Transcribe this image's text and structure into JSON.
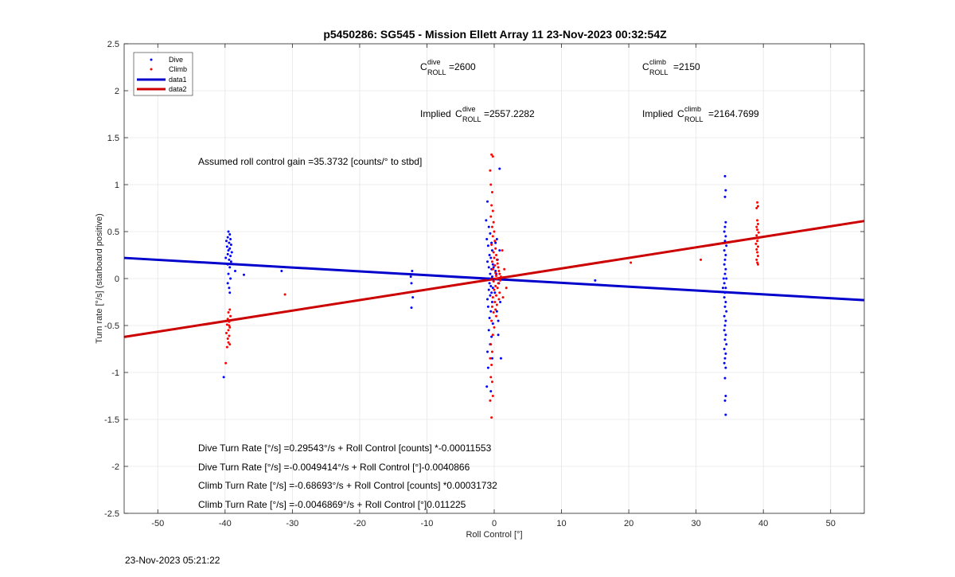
{
  "chart_data": {
    "type": "scatter",
    "title": "p5450286: SG545 - Mission Ellett Array 11 23-Nov-2023 00:32:54Z",
    "xlabel": "Roll Control [°]",
    "ylabel": "Turn rate [°/s] (starboard positive)",
    "xlim": [
      -55,
      55
    ],
    "ylim": [
      -2.5,
      2.5
    ],
    "xticks": [
      -50,
      -40,
      -30,
      -20,
      -10,
      0,
      10,
      20,
      30,
      40,
      50
    ],
    "yticks": [
      -2.5,
      -2,
      -1.5,
      -1,
      -0.5,
      0,
      0.5,
      1,
      1.5,
      2,
      2.5
    ],
    "grid": true,
    "legend_position": "top-left",
    "series": [
      {
        "name": "Dive",
        "kind": "scatter",
        "color": "#0000ff",
        "points": [
          [
            -39.5,
            0.5
          ],
          [
            -39.3,
            0.47
          ],
          [
            -39.6,
            0.44
          ],
          [
            -39.2,
            0.42
          ],
          [
            -39.8,
            0.4
          ],
          [
            -39.4,
            0.38
          ],
          [
            -39.1,
            0.36
          ],
          [
            -39.7,
            0.34
          ],
          [
            -39.3,
            0.32
          ],
          [
            -39.5,
            0.3
          ],
          [
            -39.0,
            0.28
          ],
          [
            -39.6,
            0.26
          ],
          [
            -39.2,
            0.24
          ],
          [
            -39.9,
            0.22
          ],
          [
            -39.4,
            0.2
          ],
          [
            -39.1,
            0.18
          ],
          [
            -39.6,
            0.15
          ],
          [
            -39.3,
            0.12
          ],
          [
            -39.5,
            0.05
          ],
          [
            -39.2,
            0.0
          ],
          [
            -39.6,
            -0.05
          ],
          [
            -39.4,
            -0.1
          ],
          [
            -39.3,
            -0.15
          ],
          [
            -38.5,
            0.08
          ],
          [
            -37.2,
            0.04
          ],
          [
            -40.2,
            -1.05
          ],
          [
            -12.2,
            0.08
          ],
          [
            -12.4,
            0.02
          ],
          [
            -12.3,
            -0.05
          ],
          [
            -12.1,
            -0.2
          ],
          [
            -12.3,
            -0.31
          ],
          [
            -31.6,
            0.08
          ],
          [
            -1.0,
            0.82
          ],
          [
            -1.2,
            0.62
          ],
          [
            -0.8,
            0.55
          ],
          [
            -0.6,
            0.48
          ],
          [
            -1.1,
            0.42
          ],
          [
            -0.4,
            0.38
          ],
          [
            -0.9,
            0.35
          ],
          [
            -0.3,
            0.3
          ],
          [
            -0.7,
            0.25
          ],
          [
            -0.5,
            0.22
          ],
          [
            -1.0,
            0.18
          ],
          [
            -0.2,
            0.15
          ],
          [
            -0.8,
            0.12
          ],
          [
            -0.4,
            0.1
          ],
          [
            -0.6,
            0.05
          ],
          [
            -0.3,
            0.02
          ],
          [
            -0.9,
            0.0
          ],
          [
            -0.1,
            -0.02
          ],
          [
            -0.7,
            -0.05
          ],
          [
            -0.5,
            -0.08
          ],
          [
            -0.2,
            -0.1
          ],
          [
            -0.8,
            -0.12
          ],
          [
            -0.4,
            -0.15
          ],
          [
            -0.6,
            -0.18
          ],
          [
            -1.0,
            -0.22
          ],
          [
            -0.3,
            -0.25
          ],
          [
            -0.9,
            -0.3
          ],
          [
            -0.5,
            -0.35
          ],
          [
            -0.7,
            -0.42
          ],
          [
            -0.2,
            -0.48
          ],
          [
            -0.8,
            -0.55
          ],
          [
            -0.4,
            -0.62
          ],
          [
            -0.6,
            -0.7
          ],
          [
            -1.0,
            -0.78
          ],
          [
            -0.3,
            -0.85
          ],
          [
            -0.9,
            -0.95
          ],
          [
            -1.1,
            -1.15
          ],
          [
            -0.5,
            -1.2
          ],
          [
            1.0,
            -0.85
          ],
          [
            0.6,
            -0.6
          ],
          [
            0.4,
            0.42
          ],
          [
            0.2,
            0.38
          ],
          [
            0.8,
            0.3
          ],
          [
            0.5,
            0.2
          ],
          [
            0.3,
            0.05
          ],
          [
            0.7,
            -0.05
          ],
          [
            0.1,
            -0.15
          ],
          [
            0.9,
            -0.25
          ],
          [
            0.4,
            -0.35
          ],
          [
            0.6,
            -0.45
          ],
          [
            0.8,
            1.17
          ],
          [
            0.2,
            0.08
          ],
          [
            -0.1,
            0.12
          ],
          [
            15.0,
            -0.02
          ],
          [
            34.3,
            1.09
          ],
          [
            34.4,
            0.94
          ],
          [
            34.3,
            0.87
          ],
          [
            34.4,
            0.6
          ],
          [
            34.3,
            0.55
          ],
          [
            34.2,
            0.5
          ],
          [
            34.4,
            0.45
          ],
          [
            34.3,
            0.4
          ],
          [
            34.5,
            0.35
          ],
          [
            34.2,
            0.3
          ],
          [
            34.4,
            0.25
          ],
          [
            34.3,
            0.2
          ],
          [
            34.2,
            0.15
          ],
          [
            34.4,
            0.1
          ],
          [
            34.3,
            0.05
          ],
          [
            34.5,
            0.0
          ],
          [
            34.2,
            -0.05
          ],
          [
            34.4,
            -0.1
          ],
          [
            34.3,
            -0.15
          ],
          [
            34.2,
            -0.2
          ],
          [
            34.4,
            -0.25
          ],
          [
            34.3,
            -0.3
          ],
          [
            34.5,
            -0.35
          ],
          [
            34.2,
            -0.4
          ],
          [
            34.4,
            -0.45
          ],
          [
            34.3,
            -0.5
          ],
          [
            34.2,
            -0.55
          ],
          [
            34.4,
            -0.6
          ],
          [
            34.3,
            -0.65
          ],
          [
            34.5,
            -0.7
          ],
          [
            34.2,
            -0.75
          ],
          [
            34.4,
            -0.8
          ],
          [
            34.3,
            -0.85
          ],
          [
            34.2,
            -0.9
          ],
          [
            34.4,
            -0.95
          ],
          [
            34.3,
            -1.06
          ],
          [
            34.4,
            -1.25
          ],
          [
            34.3,
            -1.3
          ],
          [
            34.4,
            -1.45
          ],
          [
            34.1,
            0.0
          ],
          [
            34.0,
            -0.1
          ]
        ]
      },
      {
        "name": "Climb",
        "kind": "scatter",
        "color": "#ff0000",
        "points": [
          [
            -39.3,
            -0.33
          ],
          [
            -39.5,
            -0.36
          ],
          [
            -39.2,
            -0.4
          ],
          [
            -39.6,
            -0.43
          ],
          [
            -39.4,
            -0.46
          ],
          [
            -39.7,
            -0.49
          ],
          [
            -39.3,
            -0.52
          ],
          [
            -39.5,
            -0.55
          ],
          [
            -39.8,
            -0.58
          ],
          [
            -39.4,
            -0.61
          ],
          [
            -39.6,
            -0.64
          ],
          [
            -39.5,
            -0.68
          ],
          [
            -39.3,
            -0.7
          ],
          [
            -39.7,
            -0.73
          ],
          [
            -39.9,
            -0.9
          ],
          [
            -39.4,
            -0.5
          ],
          [
            -31.1,
            -0.17
          ],
          [
            -0.4,
            1.32
          ],
          [
            -0.2,
            1.3
          ],
          [
            -0.6,
            1.15
          ],
          [
            -0.5,
            1.0
          ],
          [
            -0.3,
            0.92
          ],
          [
            -0.4,
            0.78
          ],
          [
            -0.2,
            0.72
          ],
          [
            -0.5,
            0.66
          ],
          [
            -0.1,
            0.6
          ],
          [
            -0.3,
            0.55
          ],
          [
            0.0,
            0.5
          ],
          [
            -0.2,
            0.45
          ],
          [
            0.1,
            0.4
          ],
          [
            -0.4,
            0.36
          ],
          [
            0.2,
            0.32
          ],
          [
            -0.1,
            0.28
          ],
          [
            0.3,
            0.25
          ],
          [
            0.0,
            0.22
          ],
          [
            0.4,
            0.2
          ],
          [
            -0.3,
            0.18
          ],
          [
            0.5,
            0.16
          ],
          [
            0.1,
            0.14
          ],
          [
            0.6,
            0.12
          ],
          [
            -0.2,
            0.1
          ],
          [
            0.7,
            0.08
          ],
          [
            0.2,
            0.06
          ],
          [
            0.8,
            0.05
          ],
          [
            0.3,
            0.03
          ],
          [
            1.0,
            0.02
          ],
          [
            0.4,
            0.0
          ],
          [
            0.9,
            -0.02
          ],
          [
            -0.1,
            -0.03
          ],
          [
            0.6,
            -0.05
          ],
          [
            0.2,
            -0.08
          ],
          [
            0.5,
            -0.1
          ],
          [
            0.0,
            -0.12
          ],
          [
            0.8,
            -0.15
          ],
          [
            0.3,
            -0.18
          ],
          [
            -0.2,
            -0.2
          ],
          [
            0.7,
            -0.22
          ],
          [
            0.1,
            -0.25
          ],
          [
            0.4,
            -0.28
          ],
          [
            -0.3,
            -0.3
          ],
          [
            0.2,
            -0.33
          ],
          [
            -0.1,
            -0.36
          ],
          [
            0.3,
            -0.4
          ],
          [
            -0.4,
            -0.45
          ],
          [
            0.0,
            -0.52
          ],
          [
            -0.2,
            -0.6
          ],
          [
            -0.5,
            -0.7
          ],
          [
            -0.3,
            -0.78
          ],
          [
            -0.6,
            -0.85
          ],
          [
            -0.4,
            -0.92
          ],
          [
            -0.5,
            -1.05
          ],
          [
            -0.3,
            -1.1
          ],
          [
            -0.2,
            -1.25
          ],
          [
            -0.6,
            -1.3
          ],
          [
            -0.4,
            -1.48
          ],
          [
            1.2,
            0.3
          ],
          [
            1.5,
            0.1
          ],
          [
            1.8,
            -0.1
          ],
          [
            1.3,
            -0.2
          ],
          [
            20.3,
            0.17
          ],
          [
            30.7,
            0.2
          ],
          [
            39.1,
            0.81
          ],
          [
            39.2,
            0.77
          ],
          [
            39.0,
            0.75
          ],
          [
            39.1,
            0.62
          ],
          [
            39.2,
            0.58
          ],
          [
            39.0,
            0.55
          ],
          [
            39.1,
            0.52
          ],
          [
            39.3,
            0.49
          ],
          [
            39.0,
            0.46
          ],
          [
            39.2,
            0.43
          ],
          [
            39.1,
            0.4
          ],
          [
            38.9,
            0.37
          ],
          [
            39.2,
            0.34
          ],
          [
            39.0,
            0.31
          ],
          [
            39.1,
            0.28
          ],
          [
            39.2,
            0.24
          ],
          [
            39.0,
            0.2
          ],
          [
            39.1,
            0.17
          ],
          [
            39.2,
            0.15
          ]
        ]
      },
      {
        "name": "data1",
        "kind": "line",
        "color": "#0000cc",
        "slope": -0.0040866,
        "intercept": -0.0049414
      },
      {
        "name": "data2",
        "kind": "line",
        "color": "#cc0000",
        "slope": 0.011225,
        "intercept": -0.0046869
      }
    ],
    "annotations": {
      "c_dive": {
        "main": "C",
        "sup": "dive",
        "sub": "ROLL",
        "value": "=2600"
      },
      "c_climb": {
        "main": "C",
        "sup": "climb",
        "sub": "ROLL",
        "value": "=2150"
      },
      "implied_dive": {
        "prefix": "Implied ",
        "main": "C",
        "sup": "dive",
        "sub": "ROLL",
        "value": "=2557.2282"
      },
      "implied_climb": {
        "prefix": "Implied ",
        "main": "C",
        "sup": "climb",
        "sub": "ROLL",
        "value": "=2164.7699"
      },
      "gain": "Assumed roll control gain =35.3732 [counts/° to stbd]",
      "eq1": "Dive Turn Rate [°/s] =0.29543°/s + Roll Control [counts] *-0.00011553",
      "eq2": "Dive Turn Rate [°/s] =-0.0049414°/s + Roll Control [°]-0.0040866",
      "eq3": "Climb Turn Rate [°/s] =-0.68693°/s + Roll Control [counts] *0.00031732",
      "eq4": "Climb Turn Rate [°/s] =-0.0046869°/s + Roll Control [°]0.011225"
    }
  },
  "footer": {
    "timestamp": "23-Nov-2023 05:21:22"
  }
}
